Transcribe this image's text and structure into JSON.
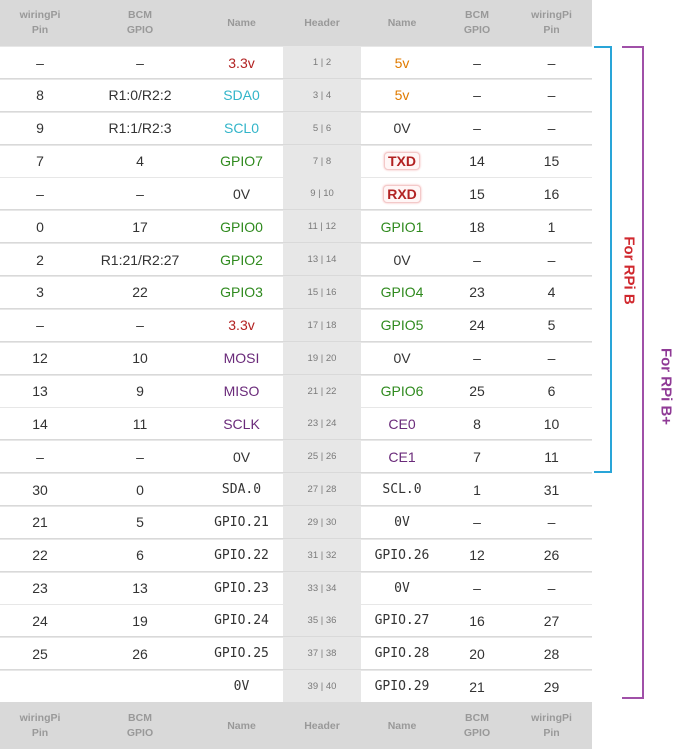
{
  "header_labels": {
    "wiringpi": "wiringPi\nPin",
    "bcm": "BCM\nGPIO",
    "name": "Name",
    "header": "Header"
  },
  "colors": {
    "red": "#b22222",
    "orange": "#e07b00",
    "cyan": "#33b5c9",
    "green": "#2f8a1e",
    "purple": "#6a2a7a",
    "black": "#333333",
    "bracket_b": "#29a5d8",
    "bracket_bplus": "#a050a8",
    "label_b": "#d0282e",
    "label_bplus": "#8f3a96"
  },
  "side_labels": {
    "rpi_b": "For RPi B",
    "rpi_bplus": "For RPi B+"
  },
  "rows": [
    {
      "lw": "–",
      "lb": "–",
      "ln": "3.3v",
      "lc": "red",
      "hdr": "1 | 2",
      "rn": "5v",
      "rc": "orange",
      "rb": "–",
      "rw": "–"
    },
    {
      "lw": "8",
      "lb": "R1:0/R2:2",
      "ln": "SDA0",
      "lc": "cyan",
      "hdr": "3 | 4",
      "rn": "5v",
      "rc": "orange",
      "rb": "–",
      "rw": "–"
    },
    {
      "lw": "9",
      "lb": "R1:1/R2:3",
      "ln": "SCL0",
      "lc": "cyan",
      "hdr": "5 | 6",
      "rn": "0V",
      "rc": "black",
      "rb": "–",
      "rw": "–"
    },
    {
      "lw": "7",
      "lb": "4",
      "ln": "GPIO7",
      "lc": "green",
      "hdr": "7 | 8",
      "rn": "TXD",
      "rc": "red",
      "rbadge": true,
      "rb": "14",
      "rw": "15"
    },
    {
      "lw": "–",
      "lb": "–",
      "ln": "0V",
      "lc": "black",
      "hdr": "9 | 10",
      "rn": "RXD",
      "rc": "red",
      "rbadge": true,
      "rb": "15",
      "rw": "16"
    },
    {
      "lw": "0",
      "lb": "17",
      "ln": "GPIO0",
      "lc": "green",
      "hdr": "11 | 12",
      "rn": "GPIO1",
      "rc": "green",
      "rb": "18",
      "rw": "1"
    },
    {
      "lw": "2",
      "lb": "R1:21/R2:27",
      "ln": "GPIO2",
      "lc": "green",
      "hdr": "13 | 14",
      "rn": "0V",
      "rc": "black",
      "rb": "–",
      "rw": "–"
    },
    {
      "lw": "3",
      "lb": "22",
      "ln": "GPIO3",
      "lc": "green",
      "hdr": "15 | 16",
      "rn": "GPIO4",
      "rc": "green",
      "rb": "23",
      "rw": "4"
    },
    {
      "lw": "–",
      "lb": "–",
      "ln": "3.3v",
      "lc": "red",
      "hdr": "17 | 18",
      "rn": "GPIO5",
      "rc": "green",
      "rb": "24",
      "rw": "5"
    },
    {
      "lw": "12",
      "lb": "10",
      "ln": "MOSI",
      "lc": "purple",
      "hdr": "19 | 20",
      "rn": "0V",
      "rc": "black",
      "rb": "–",
      "rw": "–"
    },
    {
      "lw": "13",
      "lb": "9",
      "ln": "MISO",
      "lc": "purple",
      "hdr": "21 | 22",
      "rn": "GPIO6",
      "rc": "green",
      "rb": "25",
      "rw": "6"
    },
    {
      "lw": "14",
      "lb": "11",
      "ln": "SCLK",
      "lc": "purple",
      "hdr": "23 | 24",
      "rn": "CE0",
      "rc": "purple",
      "rb": "8",
      "rw": "10"
    },
    {
      "lw": "–",
      "lb": "–",
      "ln": "0V",
      "lc": "black",
      "hdr": "25 | 26",
      "rn": "CE1",
      "rc": "purple",
      "rb": "7",
      "rw": "11"
    },
    {
      "lw": "30",
      "lb": "0",
      "ln": "SDA.0",
      "lc": "black",
      "lmono": true,
      "hdr": "27 | 28",
      "rn": "SCL.0",
      "rc": "black",
      "rmono": true,
      "rb": "1",
      "rw": "31"
    },
    {
      "lw": "21",
      "lb": "5",
      "ln": "GPIO.21",
      "lc": "black",
      "lmono": true,
      "hdr": "29 | 30",
      "rn": "0V",
      "rc": "black",
      "rmono": true,
      "rb": "–",
      "rw": "–"
    },
    {
      "lw": "22",
      "lb": "6",
      "ln": "GPIO.22",
      "lc": "black",
      "lmono": true,
      "hdr": "31 | 32",
      "rn": "GPIO.26",
      "rc": "black",
      "rmono": true,
      "rb": "12",
      "rw": "26"
    },
    {
      "lw": "23",
      "lb": "13",
      "ln": "GPIO.23",
      "lc": "black",
      "lmono": true,
      "hdr": "33 | 34",
      "rn": "0V",
      "rc": "black",
      "rmono": true,
      "rb": "–",
      "rw": "–"
    },
    {
      "lw": "24",
      "lb": "19",
      "ln": "GPIO.24",
      "lc": "black",
      "lmono": true,
      "hdr": "35 | 36",
      "rn": "GPIO.27",
      "rc": "black",
      "rmono": true,
      "rb": "16",
      "rw": "27"
    },
    {
      "lw": "25",
      "lb": "26",
      "ln": "GPIO.25",
      "lc": "black",
      "lmono": true,
      "hdr": "37 | 38",
      "rn": "GPIO.28",
      "rc": "black",
      "rmono": true,
      "rb": "20",
      "rw": "28"
    },
    {
      "lw": "",
      "lb": "",
      "ln": "0V",
      "lc": "black",
      "lmono": true,
      "hdr": "39 | 40",
      "rn": "GPIO.29",
      "rc": "black",
      "rmono": true,
      "rb": "21",
      "rw": "29"
    }
  ]
}
